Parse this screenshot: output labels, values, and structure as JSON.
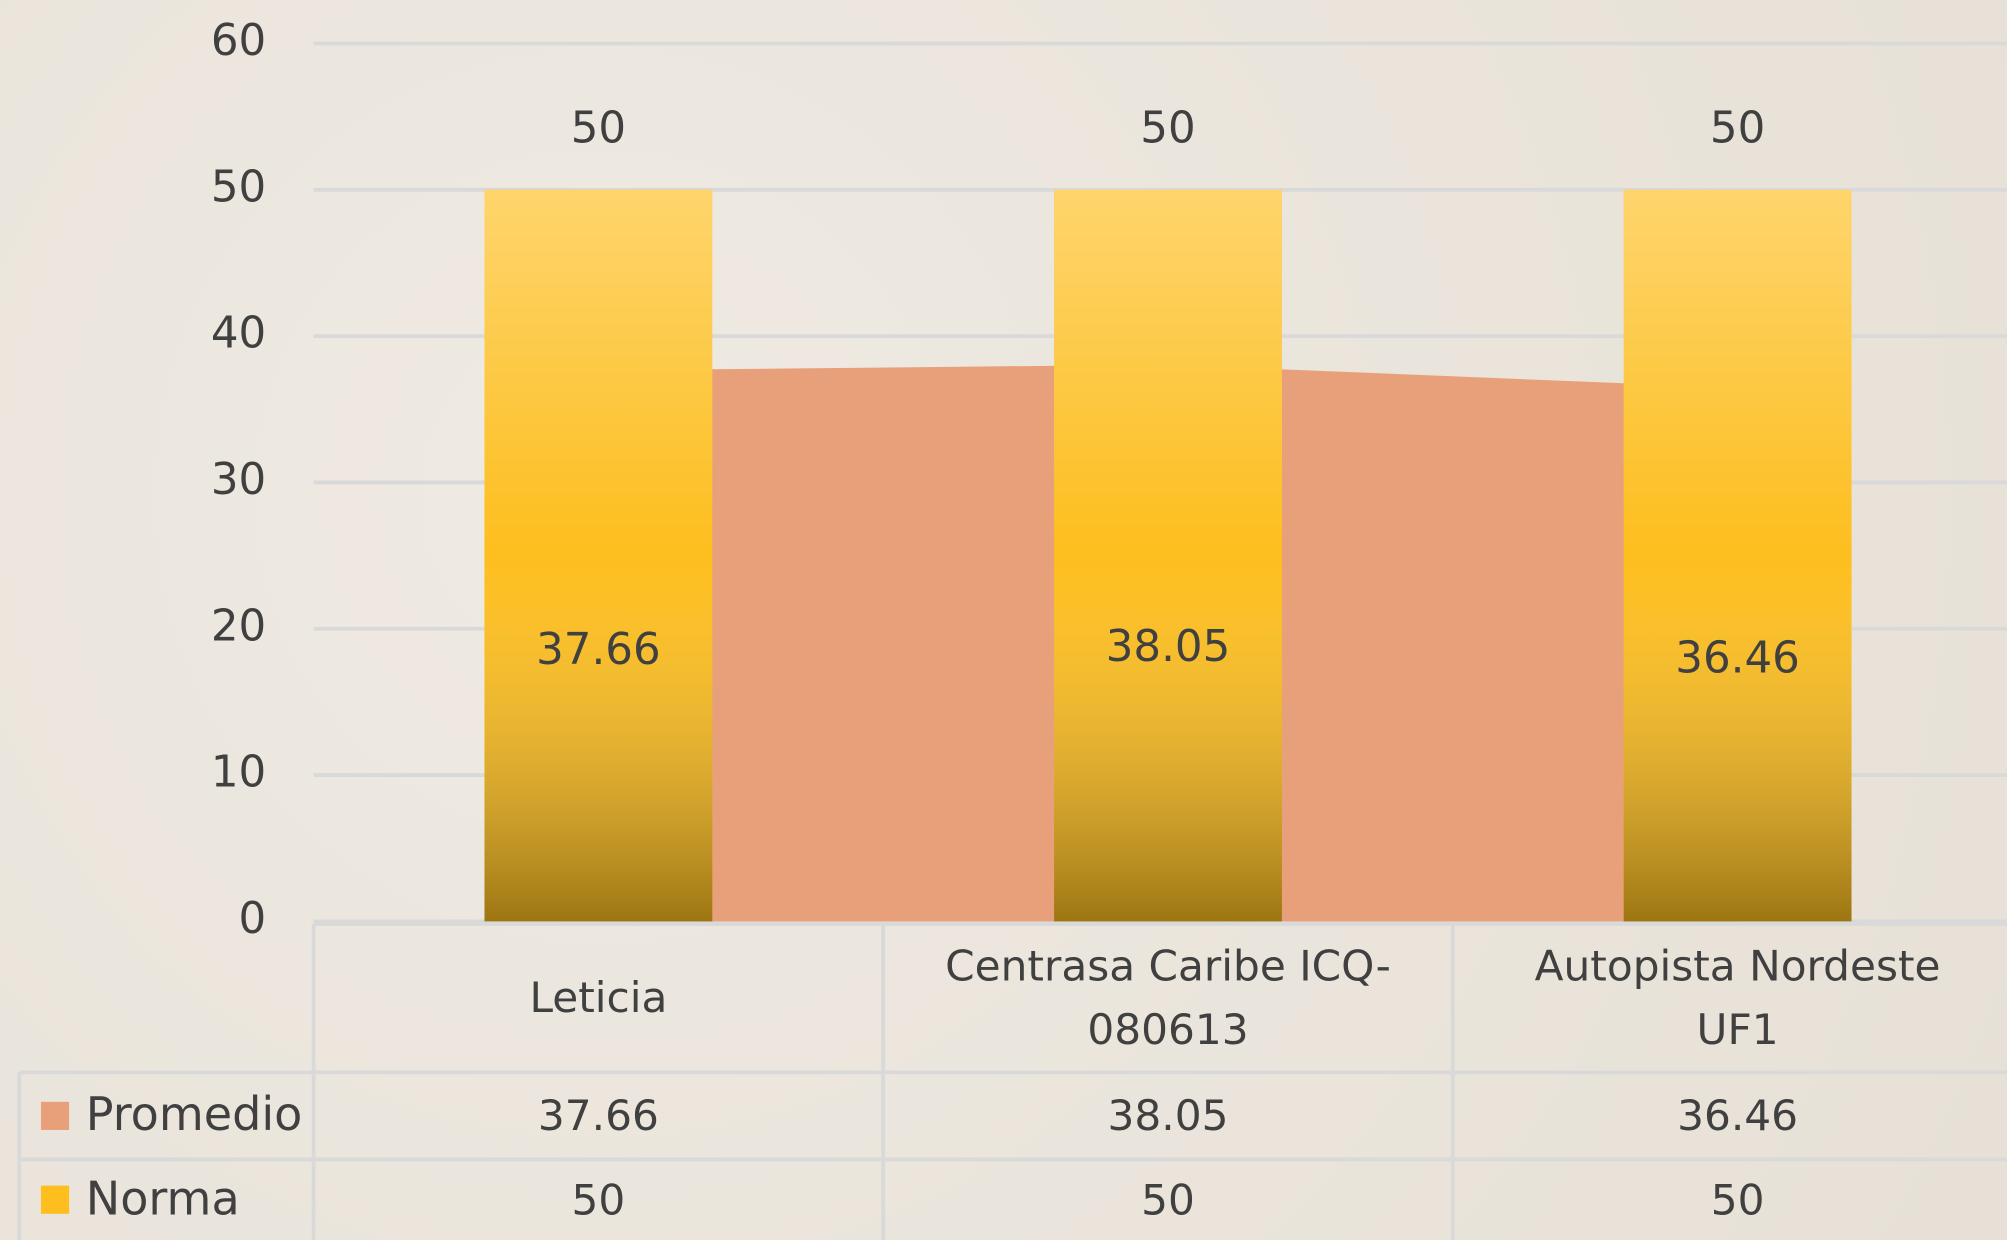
{
  "chart_data": {
    "type": "bar",
    "categories": [
      "Leticia",
      "Centrasa Caribe ICQ-080613",
      "Autopista Nordeste UF1"
    ],
    "series": [
      {
        "name": "Promedio",
        "type": "area",
        "color": "#e8a07a",
        "values": [
          37.66,
          38.05,
          36.46
        ]
      },
      {
        "name": "Norma",
        "type": "bar",
        "color": "#fdbe1e",
        "values": [
          50,
          50,
          50
        ]
      }
    ],
    "ylim": [
      0,
      60
    ],
    "yticks": [
      0,
      10,
      20,
      30,
      40,
      50,
      60
    ],
    "grid": true,
    "data_table": true
  }
}
